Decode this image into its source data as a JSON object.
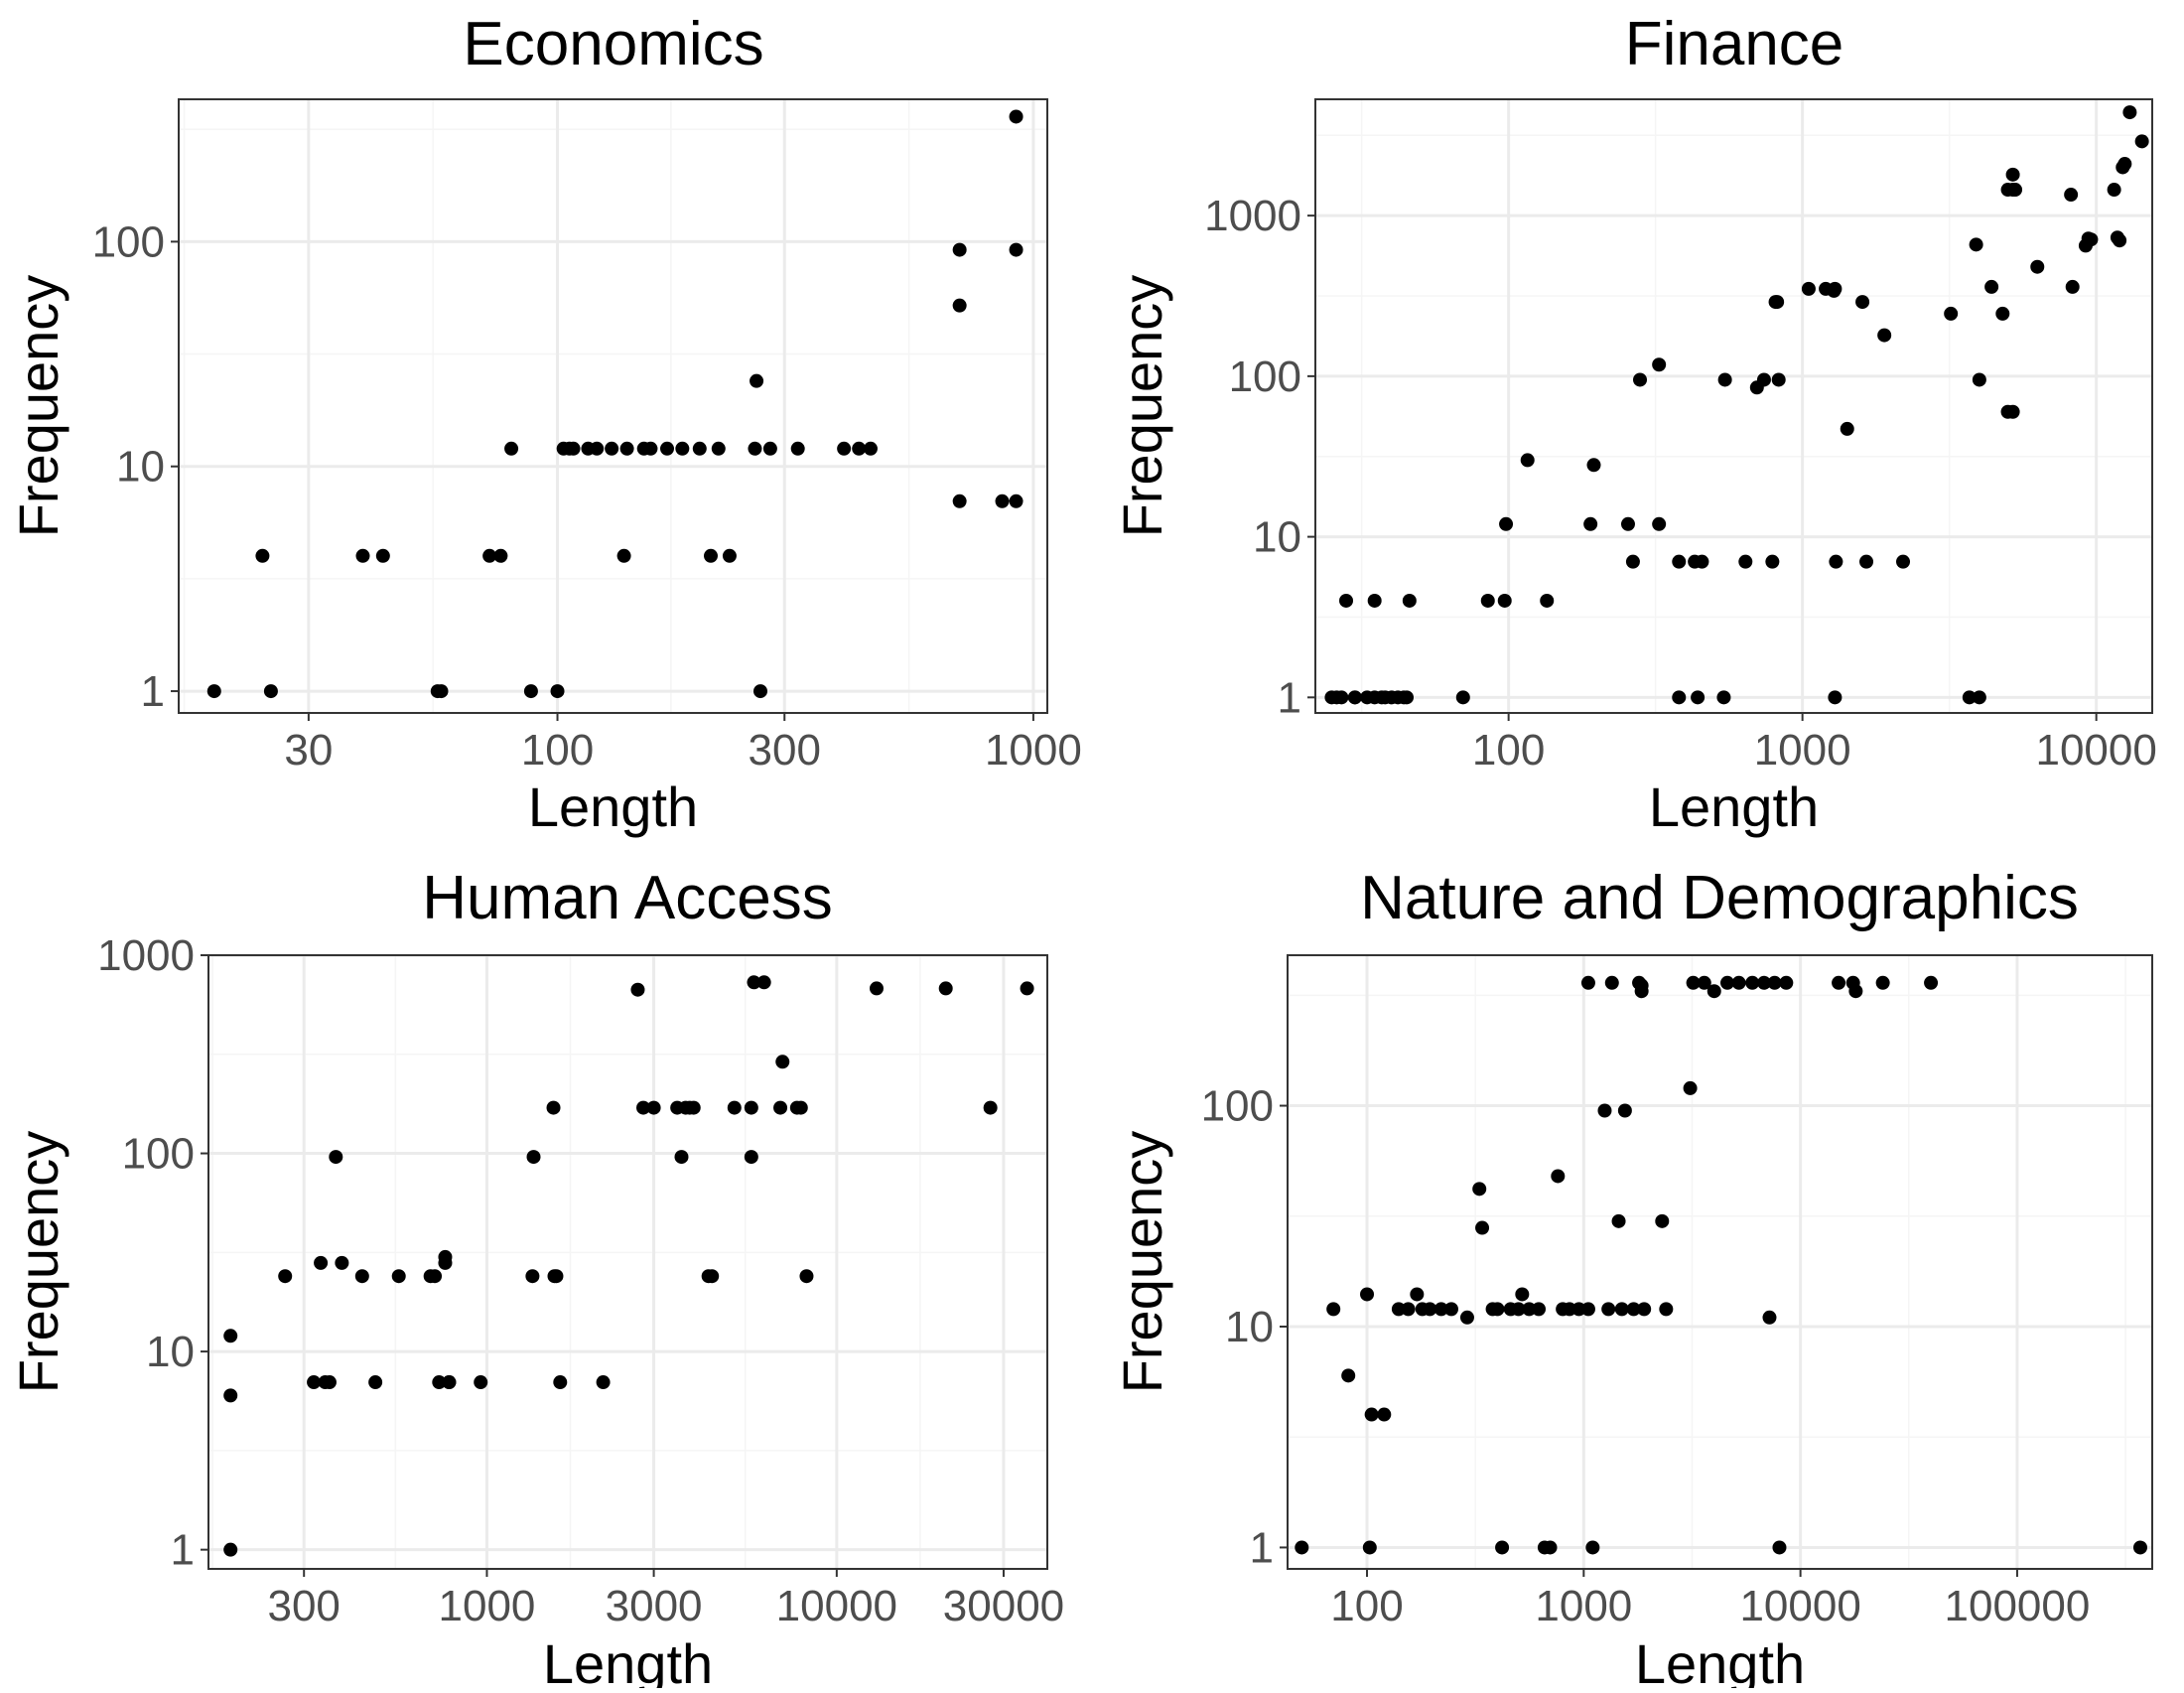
{
  "chart_data": [
    {
      "type": "scatter",
      "title": "Economics",
      "xlabel": "Length",
      "ylabel": "Frequency",
      "xscale": "log10",
      "yscale": "log10",
      "xlim": [
        16,
        1070
      ],
      "ylim": [
        0.8,
        430
      ],
      "xticks": [
        30,
        100,
        300,
        1000
      ],
      "xtick_labels": [
        "30",
        "100",
        "300",
        "1000"
      ],
      "yticks": [
        1,
        10,
        100
      ],
      "ytick_labels": [
        "1",
        "10",
        "100"
      ],
      "x": [
        19,
        24,
        25,
        39,
        43,
        56,
        57,
        72,
        76,
        80,
        88,
        100,
        103,
        106,
        108,
        116,
        121,
        130,
        138,
        140,
        152,
        157,
        170,
        183,
        199,
        210,
        218,
        230,
        260,
        262,
        267,
        280,
        320,
        400,
        430,
        455,
        700,
        700,
        700,
        860,
        920,
        920,
        920
      ],
      "y": [
        1,
        4,
        1,
        4,
        4,
        1,
        1,
        4,
        4,
        12,
        1,
        1,
        12,
        12,
        12,
        12,
        12,
        12,
        4,
        12,
        12,
        12,
        12,
        12,
        12,
        4,
        12,
        4,
        12,
        24,
        1,
        12,
        12,
        12,
        12,
        12,
        92,
        52,
        7,
        7,
        360,
        92,
        7
      ]
    },
    {
      "type": "scatter",
      "title": "Finance",
      "xlabel": "Length",
      "ylabel": "Frequency",
      "xscale": "log10",
      "yscale": "log10",
      "xlim": [
        22,
        15500
      ],
      "ylim": [
        0.8,
        5300
      ],
      "xticks": [
        100,
        1000,
        10000
      ],
      "xtick_labels": [
        "100",
        "1000",
        "10000"
      ],
      "yticks": [
        1,
        10,
        100,
        1000
      ],
      "ytick_labels": [
        "1",
        "10",
        "100",
        "1000"
      ],
      "x": [
        25,
        26,
        27,
        28,
        30,
        30,
        33,
        35,
        35,
        37,
        38,
        40,
        42,
        44,
        45,
        46,
        70,
        85,
        97,
        98,
        116,
        135,
        190,
        195,
        255,
        265,
        280,
        325,
        325,
        380,
        380,
        430,
        440,
        455,
        540,
        545,
        640,
        700,
        740,
        790,
        810,
        820,
        830,
        1050,
        1200,
        1280,
        1290,
        1290,
        1300,
        1420,
        1600,
        1650,
        1900,
        2200,
        3200,
        3700,
        3900,
        4000,
        4000,
        4400,
        4800,
        5000,
        5000,
        5200,
        5200,
        5200,
        5300,
        6300,
        8200,
        8300,
        9200,
        9400,
        9600,
        11500,
        11800,
        12000,
        12300,
        12500,
        13000,
        14300
      ],
      "y": [
        1,
        1,
        1,
        4,
        1,
        1,
        1,
        4,
        1,
        1,
        1,
        1,
        1,
        1,
        1,
        4,
        1,
        4,
        4,
        12,
        30,
        4,
        12,
        28,
        12,
        7,
        95,
        118,
        12,
        7,
        1,
        7,
        1,
        7,
        1,
        95,
        7,
        85,
        95,
        7,
        290,
        290,
        95,
        350,
        350,
        340,
        350,
        1,
        7,
        47,
        290,
        7,
        180,
        7,
        245,
        1,
        660,
        95,
        1,
        360,
        245,
        1450,
        60,
        60,
        1450,
        1800,
        1450,
        480,
        1350,
        360,
        650,
        720,
        710,
        1450,
        730,
        700,
        2000,
        2100,
        4400,
        2900
      ]
    },
    {
      "type": "scatter",
      "title": "Human Access",
      "xlabel": "Length",
      "ylabel": "Frequency",
      "xscale": "log10",
      "yscale": "log10",
      "xlim": [
        160,
        40000
      ],
      "ylim": [
        0.8,
        1000
      ],
      "xticks": [
        300,
        1000,
        3000,
        10000,
        30000
      ],
      "xtick_labels": [
        "300",
        "1000",
        "3000",
        "10000",
        "30000"
      ],
      "yticks": [
        1,
        10,
        100,
        1000
      ],
      "ytick_labels": [
        "1",
        "10",
        "100",
        "1000"
      ],
      "x": [
        185,
        185,
        185,
        265,
        320,
        335,
        345,
        355,
        370,
        385,
        440,
        480,
        560,
        690,
        710,
        730,
        760,
        760,
        780,
        780,
        960,
        1350,
        1360,
        1550,
        1560,
        1580,
        1620,
        2150,
        2700,
        2800,
        3000,
        3500,
        3600,
        3700,
        3800,
        3900,
        4300,
        4400,
        5100,
        5700,
        5700,
        5800,
        6200,
        6900,
        7000,
        7700,
        7900,
        8200,
        13000,
        20500,
        27500,
        35000
      ],
      "y": [
        12,
        6,
        1,
        24,
        7,
        28,
        7,
        7,
        96,
        28,
        24,
        7,
        24,
        24,
        24,
        7,
        28,
        30,
        7,
        7,
        7,
        24,
        96,
        170,
        24,
        24,
        7,
        7,
        670,
        170,
        170,
        170,
        96,
        170,
        170,
        170,
        24,
        24,
        170,
        96,
        170,
        730,
        730,
        170,
        290,
        170,
        170,
        24,
        680,
        680,
        170,
        680
      ]
    },
    {
      "type": "scatter",
      "title": "Nature and Demographics",
      "xlabel": "Length",
      "ylabel": "Frequency",
      "xscale": "log10",
      "yscale": "log10",
      "xlim": [
        43,
        420000
      ],
      "ylim": [
        0.8,
        480
      ],
      "xticks": [
        100,
        1000,
        10000,
        100000
      ],
      "xtick_labels": [
        "100",
        "1000",
        "10000",
        "100000"
      ],
      "yticks": [
        1,
        10,
        100
      ],
      "ytick_labels": [
        "1",
        "10",
        "100"
      ],
      "x": [
        50,
        70,
        82,
        100,
        103,
        105,
        120,
        140,
        155,
        170,
        180,
        195,
        220,
        245,
        290,
        330,
        340,
        380,
        400,
        420,
        460,
        500,
        520,
        560,
        620,
        660,
        700,
        760,
        800,
        860,
        950,
        1050,
        1050,
        1100,
        1250,
        1300,
        1350,
        1450,
        1500,
        1550,
        1700,
        1800,
        1850,
        1850,
        1900,
        2300,
        2400,
        3100,
        3200,
        3600,
        4000,
        4600,
        5200,
        6000,
        6800,
        7200,
        7600,
        8000,
        8600,
        15000,
        17500,
        18000,
        24000,
        40000,
        370000
      ],
      "y": [
        1,
        12,
        6,
        14,
        1,
        4,
        4,
        12,
        12,
        14,
        12,
        12,
        12,
        12,
        11,
        42,
        28,
        12,
        12,
        1,
        12,
        12,
        14,
        12,
        12,
        1,
        1,
        48,
        12,
        12,
        12,
        360,
        12,
        1,
        95,
        12,
        360,
        30,
        12,
        95,
        12,
        360,
        350,
        330,
        12,
        30,
        12,
        120,
        360,
        360,
        330,
        360,
        360,
        360,
        360,
        11,
        360,
        1,
        360,
        360,
        360,
        330,
        360,
        360,
        1
      ]
    }
  ]
}
